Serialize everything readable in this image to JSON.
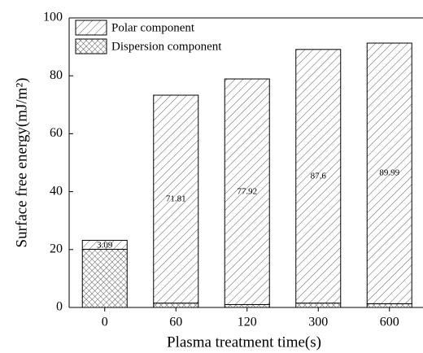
{
  "chart_data": {
    "type": "stacked_bar",
    "x_label": "Plasma treatment time(s)",
    "y_label": "Surface free energy(mJ/m²)",
    "categories": [
      "0",
      "60",
      "120",
      "300",
      "600"
    ],
    "series": [
      {
        "name": "Polar component",
        "color": "#000000",
        "hatch": "///",
        "values": [
          3.09,
          71.81,
          77.92,
          87.6,
          89.99
        ]
      },
      {
        "name": "Dispersion component",
        "color": "#000000",
        "hatch": "xxx",
        "values": [
          20.1,
          1.5,
          1.0,
          1.5,
          1.3
        ]
      }
    ],
    "ylim": [
      0,
      100
    ],
    "yticks": [
      0,
      20,
      40,
      60,
      80,
      100
    ],
    "legend": "upper left"
  }
}
